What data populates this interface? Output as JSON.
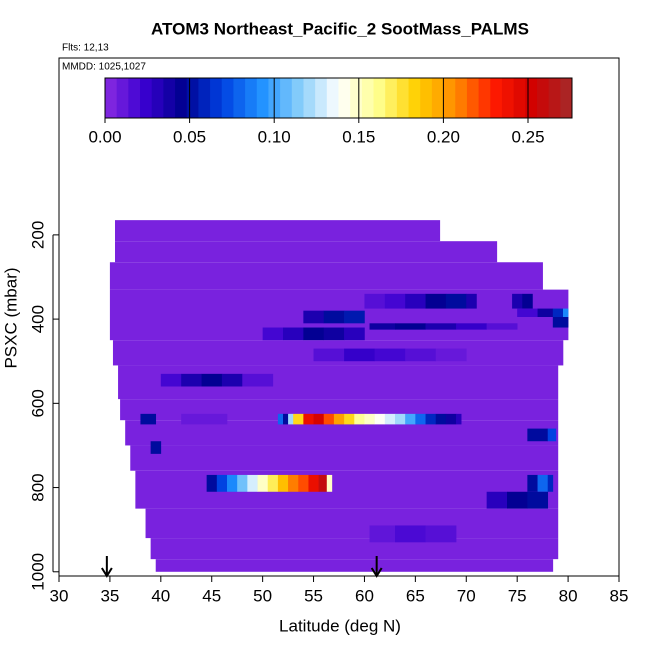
{
  "chart_data": {
    "type": "heatmap",
    "title": "ATOM3 Northeast_Pacific_2 SootMass_PALMS",
    "subtitle": "Flts: 12,13",
    "annotation": "MMDD: 1025,1027",
    "xlabel": "Latitude (deg N)",
    "ylabel": "PSXC (mbar)",
    "xlim": [
      30,
      85
    ],
    "xticks": [
      30,
      35,
      40,
      45,
      50,
      55,
      60,
      65,
      70,
      75,
      80,
      85
    ],
    "ylim": [
      1010,
      -220
    ],
    "yticks": [
      200,
      400,
      600,
      800,
      1000
    ],
    "colorbar": {
      "lim": [
        0,
        0.276
      ],
      "ticks": [
        {
          "value": 0,
          "label": "0.00"
        },
        {
          "value": 0.05,
          "label": "0.05"
        },
        {
          "value": 0.1,
          "label": "0.10"
        },
        {
          "value": 0.15,
          "label": "0.15"
        },
        {
          "value": 0.2,
          "label": "0.20"
        },
        {
          "value": 0.25,
          "label": "0.25"
        }
      ],
      "colors": [
        "#8a2be2",
        "#3a00d0",
        "#000090",
        "#0040e0",
        "#1e90ff",
        "#87cefa",
        "#ffffff",
        "#ffff90",
        "#ffd000",
        "#ff8c00",
        "#ff1a00",
        "#d00000",
        "#a52a2a"
      ]
    },
    "rows": [
      {
        "psxc": [
          165,
          215
        ],
        "lats": [
          35.5,
          67.4
        ],
        "values": [
          0.005
        ]
      },
      {
        "psxc": [
          215,
          265
        ],
        "lats": [
          35.5,
          73.0
        ],
        "values": [
          0.005
        ]
      },
      {
        "psxc": [
          265,
          330
        ],
        "lats": [
          35.0,
          77.5
        ],
        "values": [
          0.005
        ]
      },
      {
        "psxc": [
          330,
          450
        ],
        "lats": [
          35.0,
          80.0
        ],
        "values": [
          0.005
        ]
      },
      {
        "psxc": [
          450,
          510
        ],
        "lats": [
          35.3,
          79.5
        ],
        "values": [
          0.005
        ]
      },
      {
        "psxc": [
          510,
          590
        ],
        "lats": [
          35.8,
          79.0
        ],
        "values": [
          0.005
        ]
      },
      {
        "psxc": [
          590,
          640
        ],
        "lats": [
          36.0,
          79.0
        ],
        "values": [
          0.005
        ]
      },
      {
        "psxc": [
          640,
          700
        ],
        "lats": [
          36.5,
          79.0
        ],
        "values": [
          0.005
        ]
      },
      {
        "psxc": [
          700,
          760
        ],
        "lats": [
          37.0,
          79.0
        ],
        "values": [
          0.005
        ]
      },
      {
        "psxc": [
          760,
          850
        ],
        "lats": [
          37.5,
          79.0
        ],
        "values": [
          0.005
        ]
      },
      {
        "psxc": [
          850,
          920
        ],
        "lats": [
          38.5,
          79.0
        ],
        "values": [
          0.005
        ]
      },
      {
        "psxc": [
          920,
          970
        ],
        "lats": [
          39.0,
          79.0
        ],
        "values": [
          0.005
        ]
      },
      {
        "psxc": [
          970,
          1000
        ],
        "lats": [
          39.5,
          78.5
        ],
        "values": [
          0.005
        ]
      },
      {
        "psxc": [
          340,
          375
        ],
        "lats": [
          60,
          62,
          64,
          66,
          68,
          70,
          71
        ],
        "values": [
          0.015,
          0.02,
          0.03,
          0.045,
          0.05,
          0.035
        ]
      },
      {
        "psxc": [
          340,
          375
        ],
        "lats": [
          74.5,
          75.5,
          76.5
        ],
        "values": [
          0.035,
          0.045
        ]
      },
      {
        "psxc": [
          375,
          395
        ],
        "lats": [
          75,
          77,
          78.5,
          79.5,
          80
        ],
        "values": [
          0.02,
          0.04,
          0.06,
          0.09
        ]
      },
      {
        "psxc": [
          380,
          410
        ],
        "lats": [
          54,
          56,
          58,
          60
        ],
        "values": [
          0.035,
          0.05,
          0.055
        ]
      },
      {
        "psxc": [
          395,
          420
        ],
        "lats": [
          78.5,
          80
        ],
        "values": [
          0.05
        ]
      },
      {
        "psxc": [
          410,
          425
        ],
        "lats": [
          60.5,
          63,
          66,
          69,
          72,
          75
        ],
        "values": [
          0.04,
          0.045,
          0.035,
          0.025,
          0.015
        ]
      },
      {
        "psxc": [
          420,
          450
        ],
        "lats": [
          50,
          52,
          54,
          56,
          58,
          60
        ],
        "values": [
          0.02,
          0.03,
          0.045,
          0.04,
          0.03
        ]
      },
      {
        "psxc": [
          470,
          500
        ],
        "lats": [
          55,
          58,
          61,
          64,
          67,
          70
        ],
        "values": [
          0.015,
          0.025,
          0.02,
          0.015,
          0.01
        ]
      },
      {
        "psxc": [
          530,
          560
        ],
        "lats": [
          40,
          42,
          44,
          46,
          48,
          51
        ],
        "values": [
          0.02,
          0.035,
          0.045,
          0.035,
          0.015
        ]
      },
      {
        "psxc": [
          625,
          650
        ],
        "lats": [
          38,
          39.5
        ],
        "values": [
          0.05
        ]
      },
      {
        "psxc": [
          625,
          650
        ],
        "lats": [
          42,
          46.5
        ],
        "values": [
          0.01
        ]
      },
      {
        "psxc": [
          625,
          650
        ],
        "lats": [
          51.5,
          52,
          52.5,
          53,
          54,
          55,
          56,
          57,
          58,
          59,
          60,
          61,
          62,
          63,
          64,
          65,
          66,
          67,
          68,
          69,
          69.5
        ],
        "values": [
          0.08,
          0.05,
          0.12,
          0.18,
          0.24,
          0.25,
          0.22,
          0.2,
          0.18,
          0.16,
          0.15,
          0.14,
          0.13,
          0.12,
          0.1,
          0.08,
          0.06,
          0.05,
          0.04,
          0.03
        ]
      },
      {
        "psxc": [
          660,
          690
        ],
        "lats": [
          76,
          78,
          78.8
        ],
        "values": [
          0.05,
          0.07
        ]
      },
      {
        "psxc": [
          690,
          720
        ],
        "lats": [
          39,
          40
        ],
        "values": [
          0.05
        ]
      },
      {
        "psxc": [
          770,
          810
        ],
        "lats": [
          44.5,
          45.5,
          46.5,
          47.5,
          48.5,
          49.5,
          50.5,
          51.5,
          52.5,
          53.5,
          54.5,
          55.5,
          56.3,
          56.8
        ],
        "values": [
          0.05,
          0.07,
          0.09,
          0.11,
          0.13,
          0.15,
          0.17,
          0.19,
          0.21,
          0.22,
          0.24,
          0.26,
          0.15
        ]
      },
      {
        "psxc": [
          770,
          810
        ],
        "lats": [
          76,
          77,
          78,
          78.5
        ],
        "values": [
          0.05,
          0.08,
          0.06
        ]
      },
      {
        "psxc": [
          810,
          850
        ],
        "lats": [
          72,
          74,
          76,
          78
        ],
        "values": [
          0.03,
          0.045,
          0.05
        ]
      },
      {
        "psxc": [
          890,
          930
        ],
        "lats": [
          60.5,
          63,
          66,
          69
        ],
        "values": [
          0.012,
          0.018,
          0.015
        ]
      }
    ],
    "arrows": [
      34.7,
      61.2
    ]
  }
}
